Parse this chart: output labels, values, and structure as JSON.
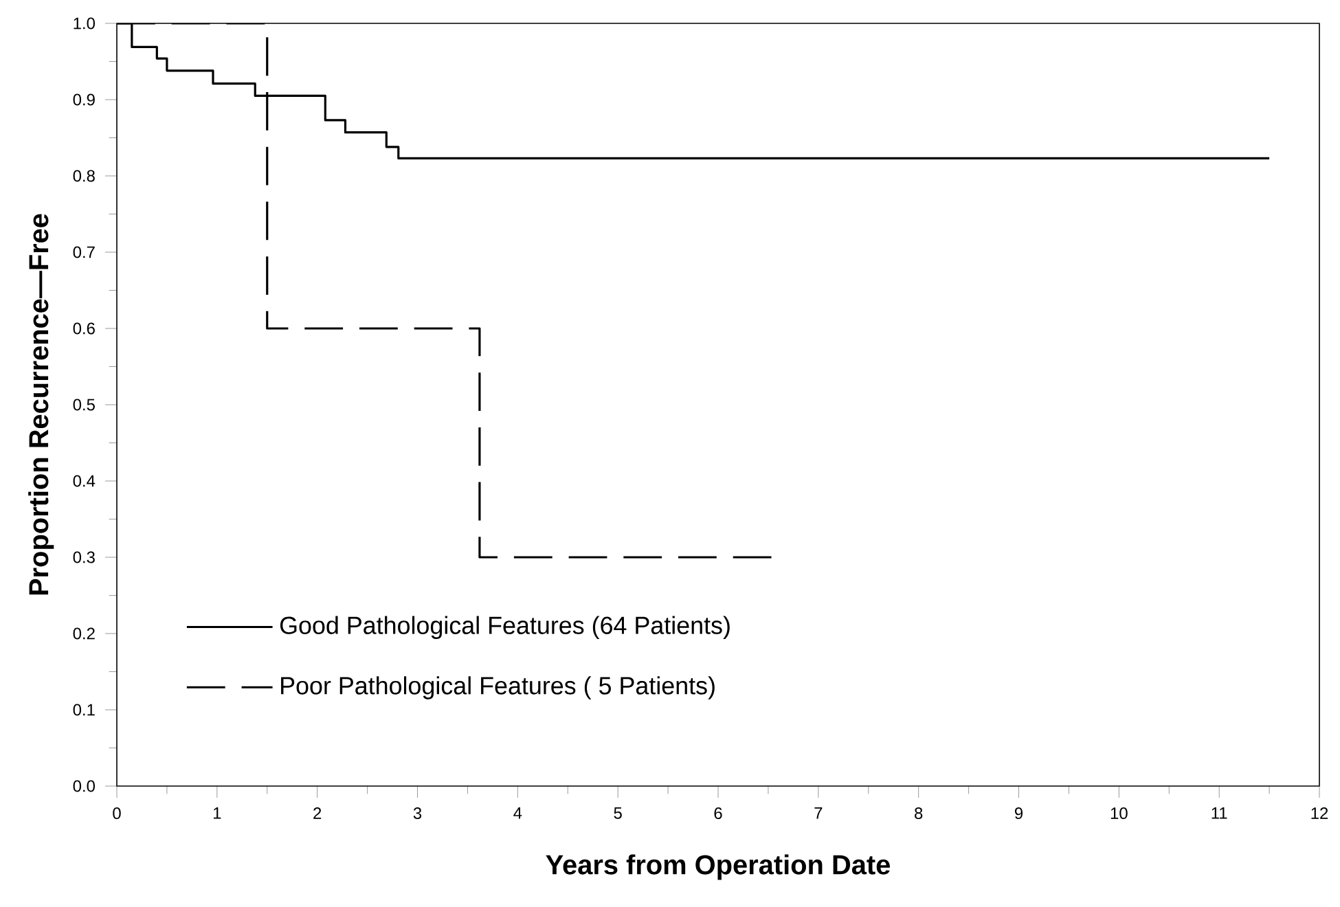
{
  "chart_data": {
    "type": "step",
    "xlabel": "Years from Operation Date",
    "ylabel": "Proportion Recurrence—Free",
    "xlim": [
      0,
      12
    ],
    "ylim": [
      0,
      1
    ],
    "xticks": [
      0,
      1,
      2,
      3,
      4,
      5,
      6,
      7,
      8,
      9,
      10,
      11,
      12
    ],
    "yticks": [
      {
        "value": 0,
        "label": "0.0"
      },
      {
        "value": 0.1,
        "label": "0.1"
      },
      {
        "value": 0.2,
        "label": "0.2"
      },
      {
        "value": 0.3,
        "label": "0.3"
      },
      {
        "value": 0.4,
        "label": "0.4"
      },
      {
        "value": 0.5,
        "label": "0.5"
      },
      {
        "value": 0.6,
        "label": "0.6"
      },
      {
        "value": 0.7,
        "label": "0.7"
      },
      {
        "value": 0.8,
        "label": "0.8"
      },
      {
        "value": 0.9,
        "label": "0.9"
      },
      {
        "value": 1,
        "label": "1.0"
      }
    ],
    "grid": false,
    "legend": "bottom left",
    "series": [
      {
        "name": "Good Pathological Features (64 Patients)",
        "color": "#000000",
        "line_style": "solid",
        "x": [
          0,
          0.15,
          0.4,
          0.5,
          0.96,
          1.38,
          2.08,
          2.28,
          2.69,
          2.81,
          11.5
        ],
        "values": [
          1.0,
          0.969,
          0.954,
          0.938,
          0.921,
          0.905,
          0.873,
          0.857,
          0.838,
          0.823,
          0.823
        ]
      },
      {
        "name": "Poor Pathological Features ( 5 Patients)",
        "color": "#000000",
        "line_style": "dashed",
        "x": [
          0,
          1.5,
          3.62,
          6.57
        ],
        "values": [
          1.0,
          0.6,
          0.3,
          0.3
        ]
      }
    ]
  }
}
